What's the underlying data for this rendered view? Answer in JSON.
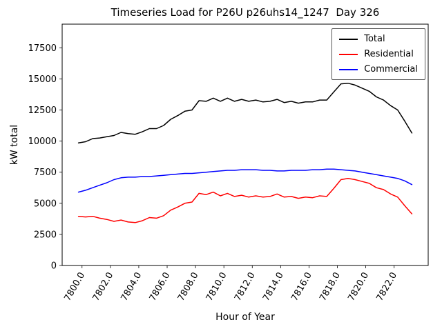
{
  "chart_data": {
    "type": "line",
    "title": "Timeseries Load for P26U p26uhs14_1247  Day 326",
    "xlabel": "Hour of Year",
    "ylabel": "kW total",
    "grid": false,
    "legend_position": "upper right",
    "xlim": [
      7798.6,
      7824.4
    ],
    "ylim": [
      0,
      19400
    ],
    "xticks": [
      7800,
      7802,
      7804,
      7806,
      7808,
      7810,
      7812,
      7814,
      7816,
      7818,
      7820,
      7822
    ],
    "xtick_labels": [
      "7800.0",
      "7802.0",
      "7804.0",
      "7806.0",
      "7808.0",
      "7810.0",
      "7812.0",
      "7814.0",
      "7816.0",
      "7818.0",
      "7820.0",
      "7822.0"
    ],
    "yticks": [
      0,
      2500,
      5000,
      7500,
      10000,
      12500,
      15000,
      17500
    ],
    "x": [
      7799.75,
      7800.25,
      7800.75,
      7801.25,
      7801.75,
      7802.25,
      7802.75,
      7803.25,
      7803.75,
      7804.25,
      7804.75,
      7805.25,
      7805.75,
      7806.25,
      7806.75,
      7807.25,
      7807.75,
      7808.25,
      7808.75,
      7809.25,
      7809.75,
      7810.25,
      7810.75,
      7811.25,
      7811.75,
      7812.25,
      7812.75,
      7813.25,
      7813.75,
      7814.25,
      7814.75,
      7815.25,
      7815.75,
      7816.25,
      7816.75,
      7817.25,
      7817.75,
      7818.25,
      7818.75,
      7819.25,
      7819.75,
      7820.25,
      7820.75,
      7821.25,
      7821.75,
      7822.25,
      7822.75,
      7823.25
    ],
    "series": [
      {
        "name": "Total",
        "color": "#000000",
        "values": [
          9850,
          9950,
          10200,
          10250,
          10350,
          10450,
          10700,
          10600,
          10550,
          10750,
          11000,
          11000,
          11250,
          11750,
          12050,
          12400,
          12500,
          13250,
          13200,
          13450,
          13200,
          13450,
          13200,
          13350,
          13200,
          13300,
          13150,
          13200,
          13350,
          13100,
          13200,
          13050,
          13150,
          13150,
          13300,
          13300,
          13950,
          14600,
          14650,
          14500,
          14250,
          14000,
          13550,
          13300,
          12850,
          12500,
          11600,
          10650
        ]
      },
      {
        "name": "Residential",
        "color": "#ff0000",
        "values": [
          3950,
          3900,
          3950,
          3800,
          3700,
          3550,
          3650,
          3500,
          3450,
          3600,
          3850,
          3800,
          4000,
          4450,
          4700,
          5000,
          5100,
          5800,
          5700,
          5900,
          5600,
          5800,
          5550,
          5650,
          5500,
          5600,
          5500,
          5550,
          5750,
          5500,
          5550,
          5400,
          5500,
          5450,
          5600,
          5550,
          6200,
          6900,
          7000,
          6900,
          6750,
          6600,
          6250,
          6100,
          5750,
          5500,
          4800,
          4150
        ]
      },
      {
        "name": "Commercial",
        "color": "#0000ff",
        "values": [
          5900,
          6050,
          6250,
          6450,
          6650,
          6900,
          7050,
          7100,
          7100,
          7150,
          7150,
          7200,
          7250,
          7300,
          7350,
          7400,
          7400,
          7450,
          7500,
          7550,
          7600,
          7650,
          7650,
          7700,
          7700,
          7700,
          7650,
          7650,
          7600,
          7600,
          7650,
          7650,
          7650,
          7700,
          7700,
          7750,
          7750,
          7700,
          7650,
          7600,
          7500,
          7400,
          7300,
          7200,
          7100,
          7000,
          6800,
          6500
        ]
      }
    ]
  }
}
